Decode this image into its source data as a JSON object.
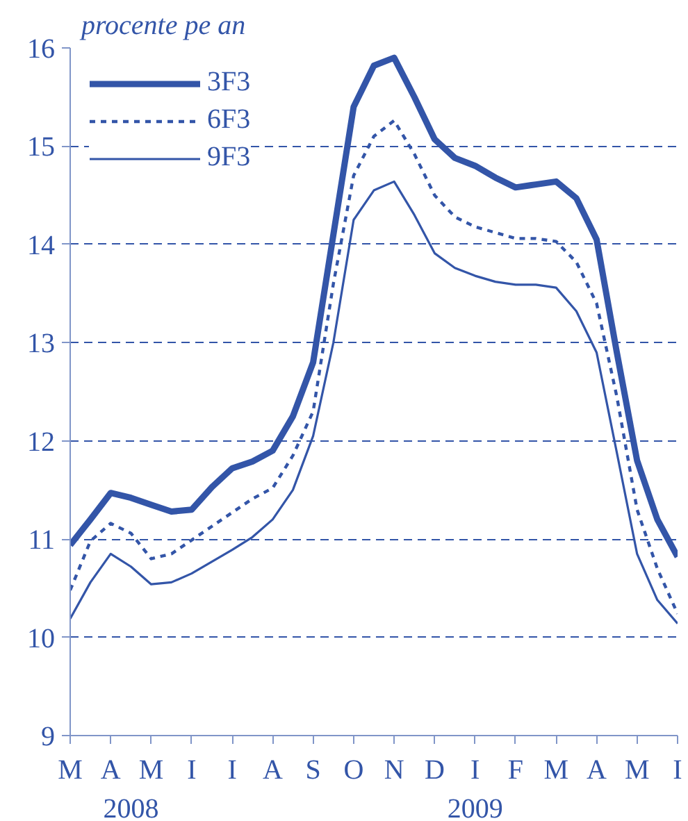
{
  "chart_data": {
    "type": "line",
    "ylabel": "procente pe an",
    "categories": [
      "M",
      null,
      "A",
      null,
      "M",
      null,
      "I",
      null,
      "I",
      null,
      "A",
      null,
      "S",
      null,
      "O",
      null,
      "N",
      null,
      "D",
      null,
      "I",
      null,
      "F",
      null,
      "M",
      null,
      "A",
      null,
      "M",
      null,
      "I"
    ],
    "ylim": [
      9,
      16
    ],
    "yticks": [
      9,
      10,
      11,
      12,
      13,
      14,
      15,
      16
    ],
    "grid": "y",
    "legend": "top left",
    "marker": "none",
    "annotations": [
      "2008",
      "2009"
    ],
    "series": [
      {
        "name": "3F3",
        "color": "#3355a8",
        "line_style": "solid",
        "values": [
          10.94,
          11.2,
          11.47,
          11.42,
          11.35,
          11.28,
          11.3,
          11.53,
          11.72,
          11.79,
          11.9,
          12.25,
          12.8,
          14.1,
          15.4,
          15.82,
          15.9,
          15.5,
          15.07,
          14.88,
          14.8,
          14.68,
          14.58,
          14.61,
          14.64,
          14.47,
          14.05,
          12.9,
          11.8,
          11.2,
          10.82
        ]
      },
      {
        "name": "6F3",
        "color": "#3355a8",
        "line_style": "dashed",
        "values": [
          10.48,
          10.98,
          11.16,
          11.06,
          10.8,
          10.85,
          10.99,
          11.13,
          11.27,
          11.41,
          11.52,
          11.85,
          12.3,
          13.6,
          14.7,
          15.1,
          15.26,
          14.92,
          14.5,
          14.28,
          14.18,
          14.12,
          14.06,
          14.06,
          14.03,
          13.82,
          13.4,
          12.45,
          11.3,
          10.7,
          10.24
        ]
      },
      {
        "name": "9F3",
        "color": "#3355a8",
        "line_style": "solid",
        "values": [
          10.19,
          10.56,
          10.85,
          10.72,
          10.54,
          10.56,
          10.65,
          10.77,
          10.89,
          11.02,
          11.2,
          11.5,
          12.05,
          13.0,
          14.25,
          14.55,
          14.64,
          14.3,
          13.91,
          13.76,
          13.68,
          13.62,
          13.59,
          13.59,
          13.56,
          13.32,
          12.9,
          11.88,
          10.85,
          10.38,
          10.14
        ]
      }
    ]
  }
}
